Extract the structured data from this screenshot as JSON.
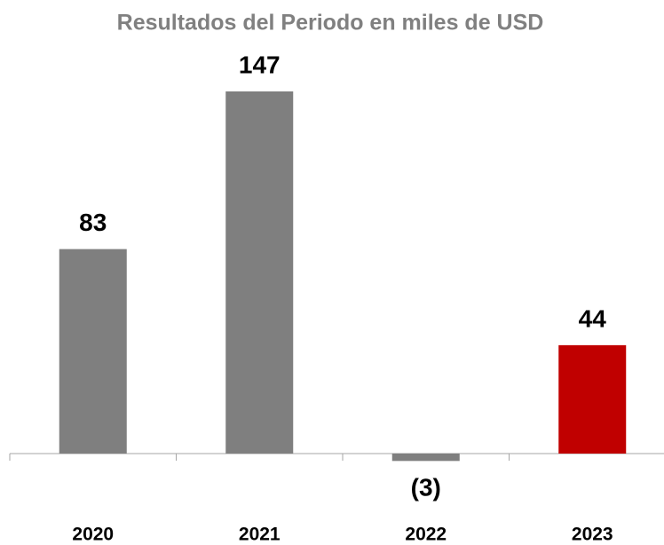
{
  "chart_data": {
    "type": "bar",
    "title": "Resultados del Periodo en miles de USD",
    "categories": [
      "2020",
      "2021",
      "2022",
      "2023"
    ],
    "values": [
      83,
      147,
      -3,
      44
    ],
    "value_labels": [
      "83",
      "147",
      "(3)",
      "44"
    ],
    "colors": [
      "#7f7f7f",
      "#7f7f7f",
      "#7f7f7f",
      "#c00000"
    ]
  }
}
